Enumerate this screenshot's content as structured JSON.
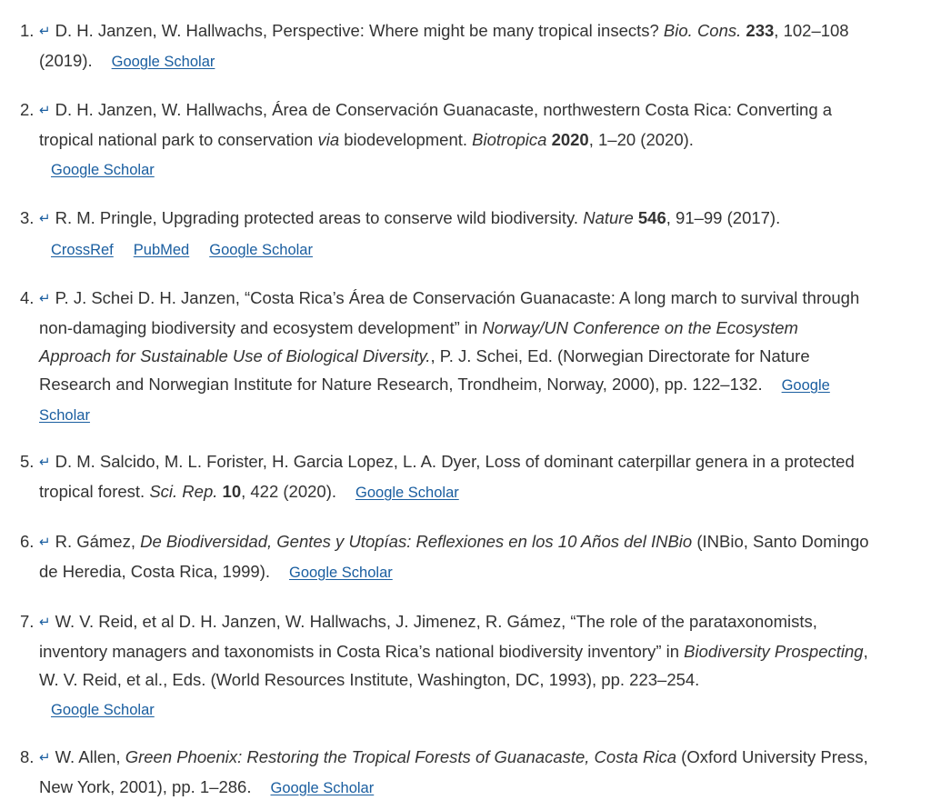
{
  "back_icon": "↵",
  "references": [
    {
      "number": "1.",
      "parts": [
        {
          "text": "D. H. Janzen, W. Hallwachs, Perspective: Where might be many tropical insects? "
        },
        {
          "text": "Bio. Cons.",
          "style": "italic"
        },
        {
          "text": " "
        },
        {
          "text": "233",
          "style": "bold"
        },
        {
          "text": ", 102–108 (2019)."
        }
      ],
      "links": [
        "Google Scholar"
      ],
      "links_layout": "inline"
    },
    {
      "number": "2.",
      "parts": [
        {
          "text": "D. H. Janzen, W. Hallwachs, Área de Conservación Guanacaste, northwestern Costa Rica: Converting a tropical national park to conservation "
        },
        {
          "text": "via",
          "style": "italic"
        },
        {
          "text": " biodevelopment. "
        },
        {
          "text": "Biotropica",
          "style": "italic"
        },
        {
          "text": " "
        },
        {
          "text": "2020",
          "style": "bold"
        },
        {
          "text": ", 1–20 (2020)."
        }
      ],
      "links": [
        "Google Scholar"
      ],
      "links_layout": "block"
    },
    {
      "number": "3.",
      "parts": [
        {
          "text": "R. M. Pringle, Upgrading protected areas to conserve wild biodiversity. "
        },
        {
          "text": "Nature",
          "style": "italic"
        },
        {
          "text": " "
        },
        {
          "text": "546",
          "style": "bold"
        },
        {
          "text": ", 91–99 (2017)."
        }
      ],
      "links": [
        "CrossRef",
        "PubMed",
        "Google Scholar"
      ],
      "links_layout": "block"
    },
    {
      "number": "4.",
      "parts": [
        {
          "text": "P. J. Schei D. H. Janzen, “Costa Rica’s Área de Conservación Guanacaste: A long march to survival through non-damaging biodiversity and ecosystem development” in "
        },
        {
          "text": "Norway/UN Conference on the Ecosystem Approach for Sustainable Use of Biological Diversity.",
          "style": "italic"
        },
        {
          "text": ", P. J. Schei, Ed. (Norwegian Directorate for Nature Research and Norwegian Institute for Nature Research, Trondheim, Norway, 2000), pp. 122–132."
        }
      ],
      "links": [
        "Google Scholar"
      ],
      "links_layout": "inline"
    },
    {
      "number": "5.",
      "parts": [
        {
          "text": "D. M. Salcido, M. L. Forister, H. Garcia Lopez, L. A. Dyer, Loss of dominant caterpillar genera in a protected tropical forest. "
        },
        {
          "text": "Sci. Rep.",
          "style": "italic"
        },
        {
          "text": " "
        },
        {
          "text": "10",
          "style": "bold"
        },
        {
          "text": ", 422 (2020)."
        }
      ],
      "links": [
        "Google Scholar"
      ],
      "links_layout": "inline"
    },
    {
      "number": "6.",
      "parts": [
        {
          "text": "R. Gámez, "
        },
        {
          "text": "De Biodiversidad, Gentes y Utopías: Reflexiones en los 10 Años del INBio",
          "style": "italic"
        },
        {
          "text": " (INBio, Santo Domingo de Heredia, Costa Rica, 1999)."
        }
      ],
      "links": [
        "Google Scholar"
      ],
      "links_layout": "inline"
    },
    {
      "number": "7.",
      "parts": [
        {
          "text": "W. V. Reid, et al D. H. Janzen, W. Hallwachs, J. Jimenez, R. Gámez, “The role of the parataxonomists, inventory managers and taxonomists in Costa Rica’s national biodiversity inventory” in "
        },
        {
          "text": "Biodiversity Prospecting",
          "style": "italic"
        },
        {
          "text": ", W. V. Reid, et al., Eds. (World Resources Institute, Washington, DC, 1993), pp. 223–254."
        }
      ],
      "links": [
        "Google Scholar"
      ],
      "links_layout": "block"
    },
    {
      "number": "8.",
      "parts": [
        {
          "text": "W. Allen, "
        },
        {
          "text": "Green Phoenix: Restoring the Tropical Forests of Guanacaste, Costa Rica",
          "style": "italic"
        },
        {
          "text": " (Oxford University Press, New York, 2001), pp. 1–286."
        }
      ],
      "links": [
        "Google Scholar"
      ],
      "links_layout": "inline"
    }
  ]
}
